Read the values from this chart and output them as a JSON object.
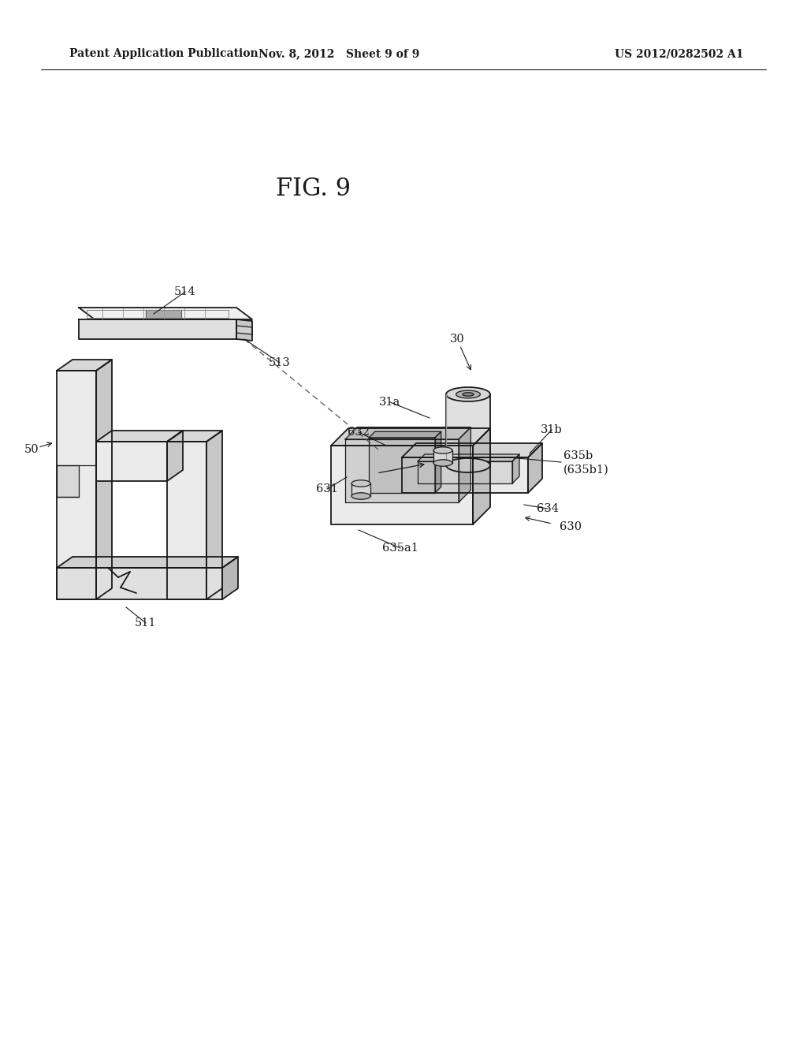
{
  "background_color": "#ffffff",
  "fig_label": "FIG. 9",
  "header_left": "Patent Application Publication",
  "header_center": "Nov. 8, 2012   Sheet 9 of 9",
  "header_right": "US 2012/0282502 A1",
  "line_color": "#1a1a1a",
  "text_color": "#1a1a1a",
  "label_fontsize": 10.5,
  "header_fontsize": 10,
  "fig_label_fontsize": 22
}
